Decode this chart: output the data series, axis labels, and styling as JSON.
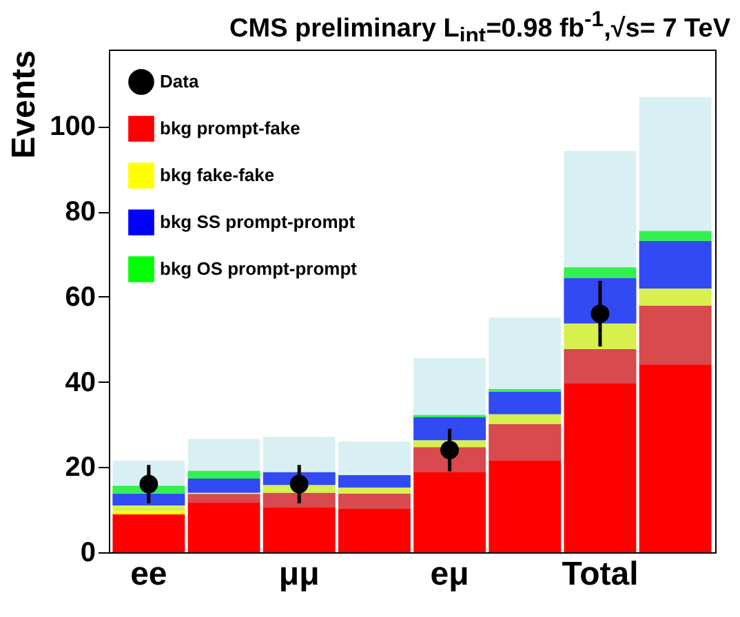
{
  "chart_data": {
    "type": "bar",
    "stacked": true,
    "title": "CMS preliminary  L$_{int}$=0.98 fb$^{-1}$,√s= 7 TeV",
    "ylabel": "Events",
    "categories": [
      "ee",
      null,
      "μμ",
      null,
      "eμ",
      null,
      "Total",
      null
    ],
    "ylim": [
      0,
      118
    ],
    "yticks": [
      0,
      20,
      40,
      60,
      80,
      100
    ],
    "grid": false,
    "legend": "top left",
    "series": [
      {
        "name": "bkg prompt-fake",
        "color": "#ff0000",
        "values": [
          8.9,
          13.7,
          14.0,
          13.8,
          24.7,
          30.1,
          47.7,
          57.9
        ]
      },
      {
        "name": "bkg fake-fake",
        "color": "#ffff00",
        "values": [
          2.1,
          0.3,
          1.8,
          1.4,
          1.6,
          2.3,
          6.0,
          4.0
        ]
      },
      {
        "name": "bkg SS prompt-prompt",
        "color": "#0000ff",
        "values": [
          2.8,
          3.3,
          3.0,
          2.9,
          5.4,
          5.3,
          10.7,
          11.2
        ]
      },
      {
        "name": "bkg OS prompt-prompt",
        "color": "#00ff00",
        "values": [
          1.8,
          1.8,
          0,
          0,
          0.5,
          0.6,
          2.5,
          2.3
        ],
        "errors": [
          5.9,
          7.5,
          8.3,
          7.9,
          13.4,
          16.8,
          27.3,
          31.4
        ]
      },
      {
        "name": "Data",
        "type": "scatter",
        "color": "#000000",
        "marker": "circle",
        "x": [
          "ee",
          "μμ",
          "eμ",
          "Total"
        ],
        "values": [
          16.0,
          16.0,
          24.0,
          56.0
        ],
        "errors": [
          4.5,
          4.5,
          5.0,
          7.7
        ]
      }
    ]
  }
}
